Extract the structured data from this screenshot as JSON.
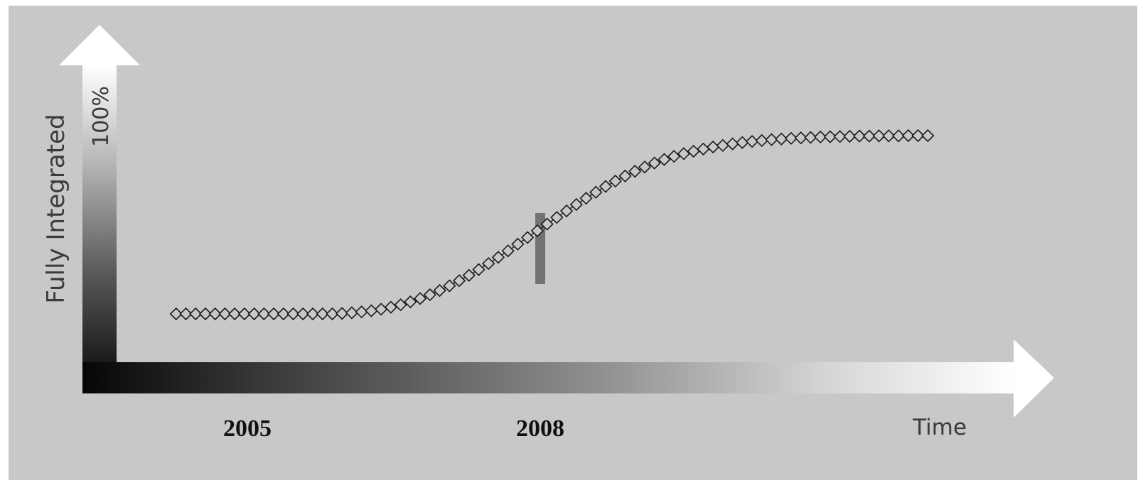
{
  "chart_data": {
    "type": "line",
    "marker": "diamond",
    "xlabel": "Time",
    "ylabel": "Fully Integrated",
    "y_max_label": "100%",
    "x_ticks": [
      {
        "label": "2005",
        "x": 2005
      },
      {
        "label": "2008",
        "x": 2008
      }
    ],
    "highlight_x": 2008,
    "series": [
      {
        "x": [
          2004.27,
          2004.37,
          2004.47,
          2004.57,
          2004.67,
          2004.77,
          2004.87,
          2004.97,
          2005.07,
          2005.17,
          2005.27,
          2005.37,
          2005.47,
          2005.57,
          2005.67,
          2005.77,
          2005.87,
          2005.97,
          2006.07,
          2006.17,
          2006.27,
          2006.37,
          2006.47,
          2006.57,
          2006.67,
          2006.77,
          2006.87,
          2006.97,
          2007.07,
          2007.17,
          2007.27,
          2007.37,
          2007.47,
          2007.57,
          2007.67,
          2007.77,
          2007.87,
          2007.97,
          2008.07,
          2008.17,
          2008.27,
          2008.37,
          2008.47,
          2008.57,
          2008.67,
          2008.77,
          2008.87,
          2008.97,
          2009.07,
          2009.17,
          2009.27,
          2009.37,
          2009.47,
          2009.57,
          2009.67,
          2009.77,
          2009.87,
          2009.97,
          2010.07,
          2010.17,
          2010.27,
          2010.37,
          2010.47,
          2010.57,
          2010.67,
          2010.77,
          2010.87,
          2010.97,
          2011.07,
          2011.17,
          2011.27,
          2011.37,
          2011.47,
          2011.57,
          2011.67,
          2011.77,
          2011.87,
          2011.97
        ],
        "y": [
          12,
          12,
          12,
          12,
          12,
          12,
          12,
          12,
          12,
          12,
          12,
          12,
          12,
          12,
          12,
          12,
          12,
          12.2,
          12.5,
          12.9,
          13.4,
          14.1,
          15.0,
          16.1,
          17.4,
          18.9,
          20.6,
          22.5,
          24.6,
          26.9,
          29.3,
          31.9,
          34.6,
          37.4,
          40.3,
          43.3,
          46.3,
          49.3,
          52.3,
          55.3,
          58.2,
          61.1,
          63.9,
          66.6,
          69.2,
          71.6,
          73.9,
          76.0,
          77.9,
          79.7,
          81.3,
          82.7,
          83.9,
          85.0,
          86.0,
          86.9,
          87.6,
          88.3,
          88.9,
          89.4,
          89.8,
          90.2,
          90.5,
          90.8,
          91.0,
          91.2,
          91.4,
          91.5,
          91.6,
          91.7,
          91.8,
          91.8,
          91.9,
          91.9,
          91.9,
          92.0,
          92.0,
          92.0
        ]
      }
    ]
  }
}
